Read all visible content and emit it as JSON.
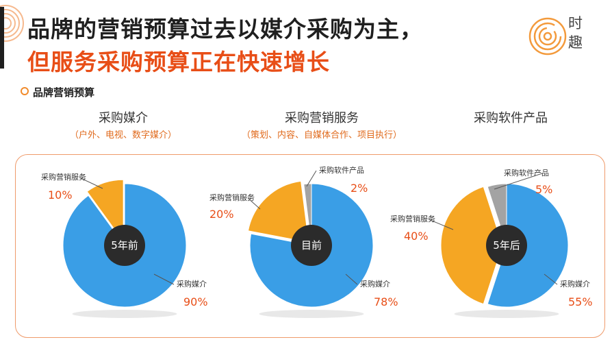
{
  "header": {
    "title_line1": "品牌的营销预算过去以媒介采购为主，",
    "title_line2": "但服务采购预算正在快速增长"
  },
  "logo": {
    "text_line1": "时",
    "text_line2": "趣"
  },
  "section": {
    "label": "品牌营销预算"
  },
  "columns": [
    {
      "title": "采购媒介",
      "subtitle": "（户外、电视、数字媒介）"
    },
    {
      "title": "采购营销服务",
      "subtitle": "（策划、内容、自媒体合作、项目执行）"
    },
    {
      "title": "采购软件产品",
      "subtitle": ""
    }
  ],
  "colors": {
    "media": "#3a9ee6",
    "service": "#f5a623",
    "software": "#a3a3a3",
    "accent": "#e84e17",
    "center": "#2b2b2b"
  },
  "chart_data": [
    {
      "type": "pie",
      "center_label": "5年前",
      "series": [
        {
          "name": "采购媒介",
          "value": 90,
          "label": "90%"
        },
        {
          "name": "采购营销服务",
          "value": 10,
          "label": "10%"
        }
      ]
    },
    {
      "type": "pie",
      "center_label": "目前",
      "series": [
        {
          "name": "采购媒介",
          "value": 78,
          "label": "78%"
        },
        {
          "name": "采购营销服务",
          "value": 20,
          "label": "20%"
        },
        {
          "name": "采购软件产品",
          "value": 2,
          "label": "2%"
        }
      ]
    },
    {
      "type": "pie",
      "center_label": "5年后",
      "series": [
        {
          "name": "采购媒介",
          "value": 55,
          "label": "55%"
        },
        {
          "name": "采购营销服务",
          "value": 40,
          "label": "40%"
        },
        {
          "name": "采购软件产品",
          "value": 5,
          "label": "5%"
        }
      ]
    }
  ]
}
